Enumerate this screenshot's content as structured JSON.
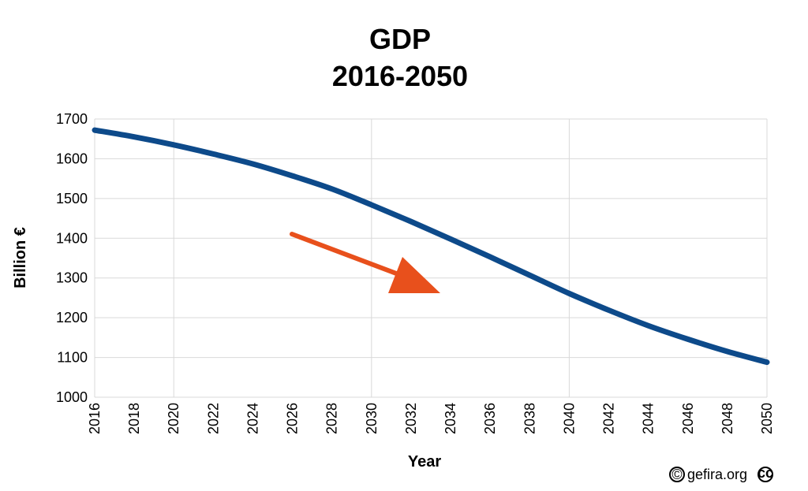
{
  "chart_data": {
    "type": "line",
    "title": "GDP",
    "subtitle": "2016-2050",
    "xlabel": "Year",
    "ylabel": "Billion €",
    "xlim": [
      2016,
      2050
    ],
    "ylim": [
      1000,
      1700
    ],
    "x_ticks": [
      "2016",
      "2018",
      "2020",
      "2022",
      "2024",
      "2026",
      "2028",
      "2030",
      "2032",
      "2034",
      "2036",
      "2038",
      "2040",
      "2042",
      "2044",
      "2046",
      "2048",
      "2050"
    ],
    "y_ticks": [
      "1000",
      "1100",
      "1200",
      "1300",
      "1400",
      "1500",
      "1600",
      "1700"
    ],
    "grid": true,
    "series": [
      {
        "color": "#0d4a8a",
        "x": [
          2016,
          2018,
          2020,
          2022,
          2024,
          2026,
          2028,
          2030,
          2032,
          2034,
          2036,
          2038,
          2040,
          2042,
          2044,
          2046,
          2048,
          2050
        ],
        "y": [
          1672,
          1655,
          1635,
          1612,
          1587,
          1557,
          1524,
          1484,
          1442,
          1398,
          1353,
          1307,
          1261,
          1219,
          1180,
          1146,
          1115,
          1088
        ]
      }
    ],
    "annotations": [
      {
        "type": "arrow",
        "color": "#e8501c",
        "direction": "down-right"
      }
    ]
  },
  "credit": {
    "copyright_symbol": "©",
    "text": "gefira.org",
    "license_symbol": "cc"
  }
}
